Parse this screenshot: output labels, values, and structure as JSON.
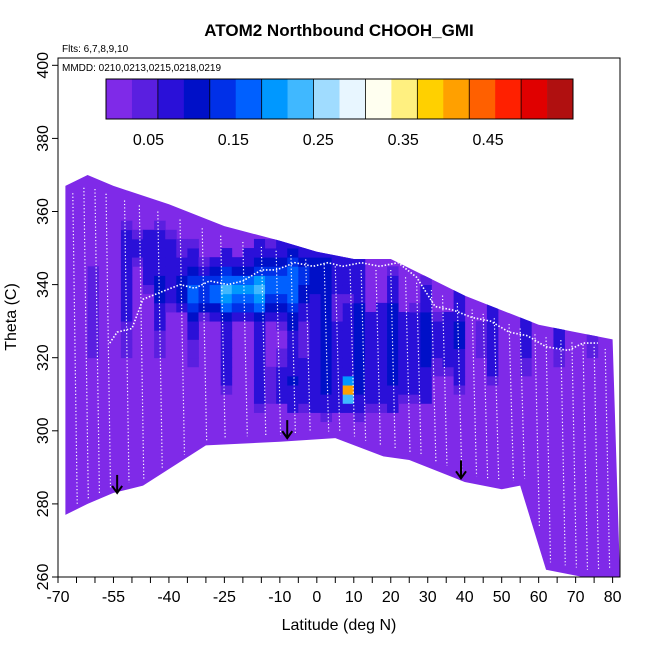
{
  "chart_data": {
    "type": "heatmap",
    "title": "ATOM2 Northbound CHOOH_GMI",
    "flights_note": "Flts: 6,7,8,9,10",
    "dates_note": "MMDD: 0210,0213,0215,0218,0219",
    "xlabel": "Latitude (deg N)",
    "ylabel": "Theta (C)",
    "xlim": [
      -70,
      82
    ],
    "ylim": [
      260,
      402
    ],
    "x_ticks": [
      -70,
      -55,
      -40,
      -25,
      -10,
      0,
      10,
      20,
      30,
      40,
      50,
      60,
      70,
      80
    ],
    "y_ticks": [
      260,
      280,
      300,
      320,
      340,
      360,
      380,
      400
    ],
    "colorbar": {
      "range": [
        0,
        0.55
      ],
      "tick_labels": [
        "0.05",
        "0.15",
        "0.25",
        "0.35",
        "0.45"
      ],
      "tick_values": [
        0.05,
        0.15,
        0.25,
        0.35,
        0.45
      ],
      "colors": [
        "#7f2ae8",
        "#5a1fe0",
        "#2a10d8",
        "#0010c8",
        "#0030e8",
        "#0060ff",
        "#0098ff",
        "#40b8ff",
        "#a0dcff",
        "#e8f6ff",
        "#fffff0",
        "#fff080",
        "#ffd000",
        "#ffa000",
        "#ff6000",
        "#ff2000",
        "#e00000",
        "#b01010"
      ]
    },
    "curtain_top": [
      [
        -68,
        367
      ],
      [
        -62,
        370
      ],
      [
        -55,
        367
      ],
      [
        -40,
        362
      ],
      [
        -25,
        356
      ],
      [
        -10,
        352
      ],
      [
        0,
        349
      ],
      [
        10,
        347
      ],
      [
        20,
        347
      ],
      [
        30,
        342
      ],
      [
        40,
        337
      ],
      [
        50,
        333
      ],
      [
        60,
        329
      ],
      [
        70,
        327
      ],
      [
        80,
        325
      ]
    ],
    "curtain_bottom": [
      [
        -68,
        277
      ],
      [
        -62,
        280
      ],
      [
        -55,
        283
      ],
      [
        -47,
        285
      ],
      [
        -30,
        296
      ],
      [
        -10,
        297
      ],
      [
        5,
        298
      ],
      [
        18,
        293
      ],
      [
        25,
        292
      ],
      [
        35,
        288
      ],
      [
        40,
        286
      ],
      [
        50,
        284
      ],
      [
        55,
        285
      ],
      [
        62,
        262
      ],
      [
        72,
        260
      ],
      [
        82,
        260
      ]
    ],
    "hot_spot": {
      "lat": 8,
      "theta": 311,
      "value": 0.45
    },
    "arrows": [
      {
        "lat": -54,
        "theta": 283
      },
      {
        "lat": -8,
        "theta": 298
      },
      {
        "lat": 39,
        "theta": 287
      }
    ]
  }
}
